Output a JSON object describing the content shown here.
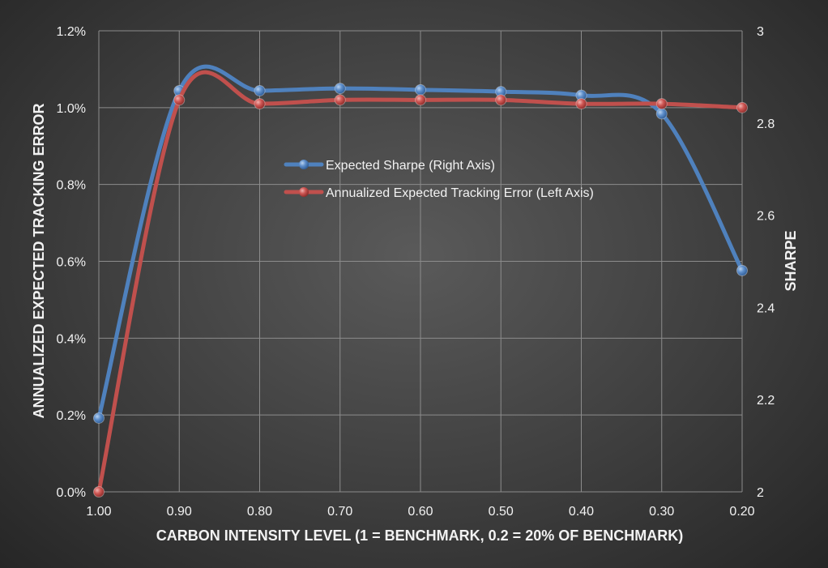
{
  "chart_data": {
    "type": "line",
    "x_axis": {
      "label": "CARBON INTENSITY  LEVEL (1 = BENCHMARK,  0.2 = 20% OF BENCHMARK)",
      "categories": [
        "1.00",
        "0.90",
        "0.80",
        "0.70",
        "0.60",
        "0.50",
        "0.40",
        "0.30",
        "0.20"
      ]
    },
    "y_left": {
      "label": "ANNUALIZED EXPECTED TRACKING ERROR",
      "ticks": [
        "0.0%",
        "0.2%",
        "0.4%",
        "0.6%",
        "0.8%",
        "1.0%",
        "1.2%"
      ],
      "range": [
        0,
        1.2
      ]
    },
    "y_right": {
      "label": "SHARPE",
      "ticks": [
        "2",
        "2.2",
        "2.4",
        "2.6",
        "2.8",
        "3"
      ],
      "range": [
        2,
        3
      ]
    },
    "series": [
      {
        "name": "Expected Sharpe (Right Axis)",
        "axis": "right",
        "color": "#4f81bd",
        "values": [
          2.16,
          2.87,
          2.87,
          2.875,
          2.872,
          2.868,
          2.86,
          2.82,
          2.48
        ]
      },
      {
        "name": "Annualized Expected Tracking Error (Left Axis)",
        "axis": "left",
        "color": "#c0504d",
        "values": [
          0.0,
          1.02,
          1.01,
          1.02,
          1.02,
          1.02,
          1.01,
          1.01,
          1.0
        ]
      }
    ],
    "grid": true,
    "legend_position": "center-inside"
  }
}
